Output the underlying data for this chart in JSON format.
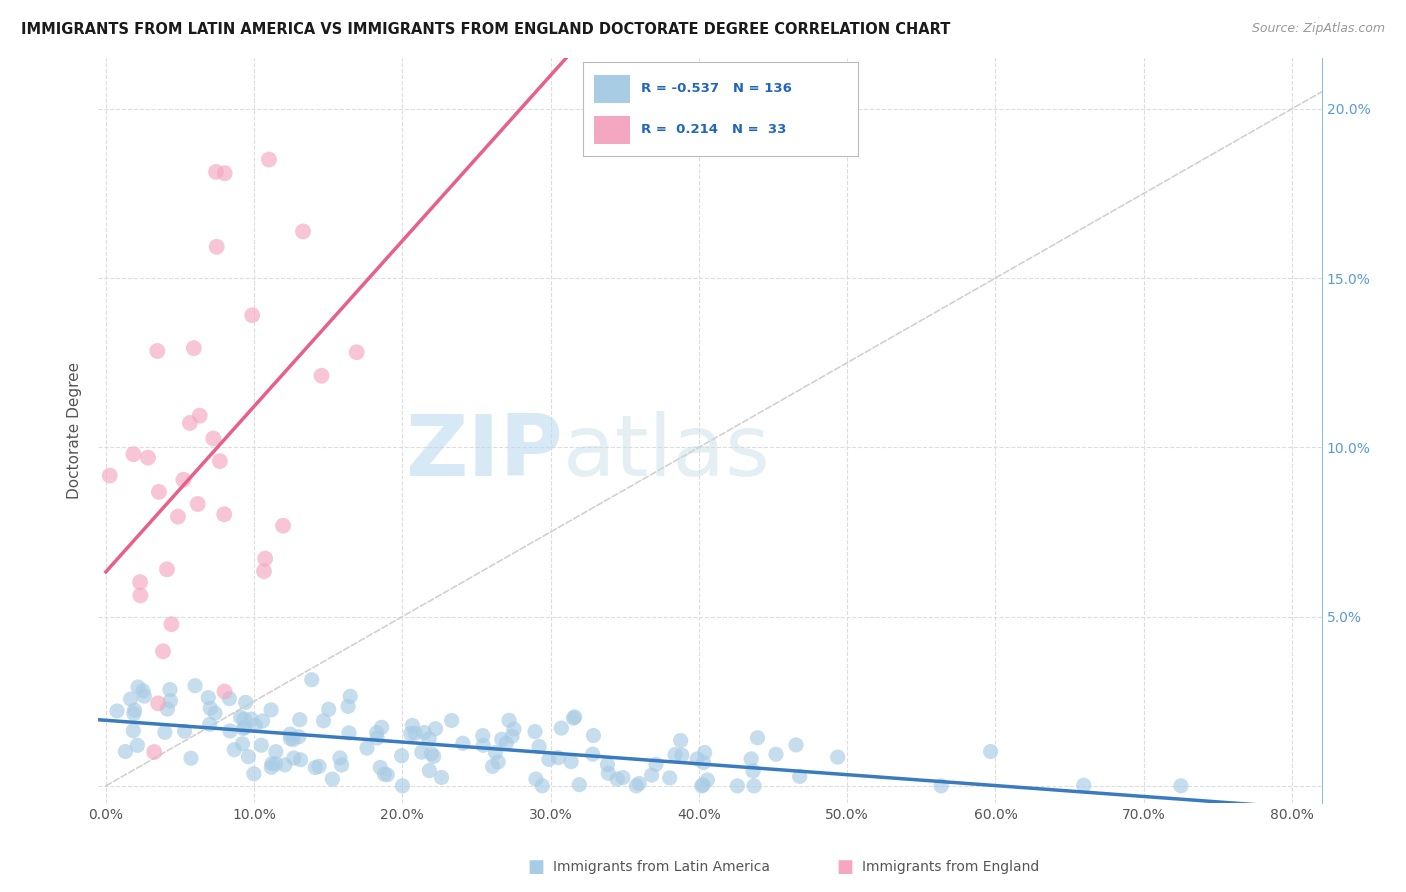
{
  "title": "IMMIGRANTS FROM LATIN AMERICA VS IMMIGRANTS FROM ENGLAND DOCTORATE DEGREE CORRELATION CHART",
  "source": "Source: ZipAtlas.com",
  "ylabel": "Doctorate Degree",
  "legend_label_blue": "Immigrants from Latin America",
  "legend_label_pink": "Immigrants from England",
  "R_blue": -0.537,
  "N_blue": 136,
  "R_pink": 0.214,
  "N_pink": 33,
  "color_blue": "#a8cce4",
  "color_pink": "#f4a7c0",
  "trendline_blue": "#3a7bbf",
  "trendline_pink": "#e8608a",
  "xlim": [
    -0.005,
    0.82
  ],
  "ylim": [
    -0.005,
    0.215
  ],
  "xticks": [
    0.0,
    0.1,
    0.2,
    0.3,
    0.4,
    0.5,
    0.6,
    0.7,
    0.8
  ],
  "yticks": [
    0.0,
    0.05,
    0.1,
    0.15,
    0.2
  ],
  "watermark_zip": "ZIP",
  "watermark_atlas": "atlas",
  "background_color": "#ffffff",
  "grid_color": "#dddddd",
  "seed": 7
}
